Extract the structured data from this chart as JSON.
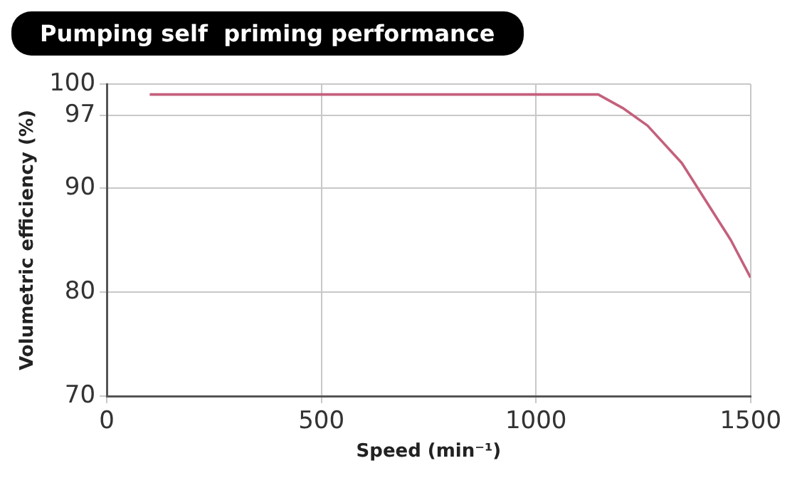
{
  "chart_data": {
    "type": "line",
    "title": "Pumping self  priming performance",
    "xlabel": "Speed (min⁻¹)",
    "ylabel": "Volumetric efficiency (%)",
    "series": [
      {
        "color": "#c4607c",
        "x": [
          100,
          500,
          1000,
          1145,
          1202,
          1260,
          1340,
          1397,
          1454,
          1500
        ],
        "values": [
          99,
          99,
          99,
          99,
          97.7,
          96,
          92.4,
          88.7,
          85,
          81.4
        ]
      }
    ],
    "xlim": [
      0,
      1500
    ],
    "xticks": [
      0,
      500,
      1000,
      1500
    ],
    "ylim": [
      70,
      100
    ],
    "yticks": [
      70,
      80,
      90,
      97,
      100
    ],
    "grid": true,
    "legend": false,
    "marker": "none",
    "line_style": "solid"
  }
}
